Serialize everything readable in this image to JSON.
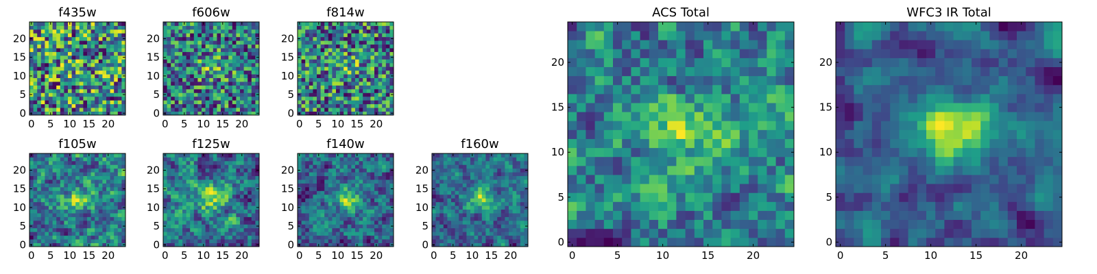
{
  "figure": {
    "colormap": "viridis",
    "colors": {
      "frame": "#000000",
      "background": "#ffffff"
    }
  },
  "chart_data": [
    {
      "type": "heatmap",
      "title": "f435w",
      "image_size": [
        25,
        25
      ],
      "xlim": [
        0,
        24
      ],
      "ylim": [
        0,
        24
      ],
      "xticks": [
        0,
        5,
        10,
        15,
        20
      ],
      "yticks": [
        0,
        5,
        10,
        15,
        20
      ],
      "seed": 11,
      "blob_strength": 0.05,
      "smooth": 0,
      "colorbar": false
    },
    {
      "type": "heatmap",
      "title": "f606w",
      "image_size": [
        25,
        25
      ],
      "xlim": [
        0,
        24
      ],
      "ylim": [
        0,
        24
      ],
      "xticks": [
        0,
        5,
        10,
        15,
        20
      ],
      "yticks": [
        0,
        5,
        10,
        15,
        20
      ],
      "seed": 23,
      "blob_strength": 0.3,
      "smooth": 0,
      "colorbar": false
    },
    {
      "type": "heatmap",
      "title": "f814w",
      "image_size": [
        25,
        25
      ],
      "xlim": [
        0,
        24
      ],
      "ylim": [
        0,
        24
      ],
      "xticks": [
        0,
        5,
        10,
        15,
        20
      ],
      "yticks": [
        0,
        5,
        10,
        15,
        20
      ],
      "seed": 37,
      "blob_strength": 0.2,
      "smooth": 0,
      "colorbar": false
    },
    {
      "type": "heatmap",
      "title": "f105w",
      "image_size": [
        25,
        25
      ],
      "xlim": [
        0,
        24
      ],
      "ylim": [
        0,
        24
      ],
      "xticks": [
        0,
        5,
        10,
        15,
        20
      ],
      "yticks": [
        0,
        5,
        10,
        15,
        20
      ],
      "seed": 41,
      "blob_strength": 0.35,
      "smooth": 1,
      "colorbar": false
    },
    {
      "type": "heatmap",
      "title": "f125w",
      "image_size": [
        25,
        25
      ],
      "xlim": [
        0,
        24
      ],
      "ylim": [
        0,
        24
      ],
      "xticks": [
        0,
        5,
        10,
        15,
        20
      ],
      "yticks": [
        0,
        5,
        10,
        15,
        20
      ],
      "seed": 53,
      "blob_strength": 0.4,
      "smooth": 1,
      "colorbar": false
    },
    {
      "type": "heatmap",
      "title": "f140w",
      "image_size": [
        25,
        25
      ],
      "xlim": [
        0,
        24
      ],
      "ylim": [
        0,
        24
      ],
      "xticks": [
        0,
        5,
        10,
        15,
        20
      ],
      "yticks": [
        0,
        5,
        10,
        15,
        20
      ],
      "seed": 67,
      "blob_strength": 0.4,
      "smooth": 1,
      "colorbar": false
    },
    {
      "type": "heatmap",
      "title": "f160w",
      "image_size": [
        25,
        25
      ],
      "xlim": [
        0,
        24
      ],
      "ylim": [
        0,
        24
      ],
      "xticks": [
        0,
        5,
        10,
        15,
        20
      ],
      "yticks": [
        0,
        5,
        10,
        15,
        20
      ],
      "seed": 79,
      "blob_strength": 0.5,
      "smooth": 1,
      "colorbar": false
    },
    {
      "type": "heatmap",
      "title": "ACS Total",
      "image_size": [
        25,
        25
      ],
      "xlim": [
        0,
        24
      ],
      "ylim": [
        0,
        24
      ],
      "xticks": [
        0,
        5,
        10,
        15,
        20
      ],
      "yticks": [
        0,
        5,
        10,
        15,
        20
      ],
      "seed": 97,
      "blob_strength": 0.35,
      "smooth": 1,
      "colorbar": false
    },
    {
      "type": "heatmap",
      "title": "WFC3 IR Total",
      "image_size": [
        25,
        25
      ],
      "xlim": [
        0,
        24
      ],
      "ylim": [
        0,
        24
      ],
      "xticks": [
        0,
        5,
        10,
        15,
        20
      ],
      "yticks": [
        0,
        5,
        10,
        15,
        20
      ],
      "seed": 113,
      "blob_strength": 0.55,
      "smooth": 2,
      "colorbar": false
    }
  ]
}
